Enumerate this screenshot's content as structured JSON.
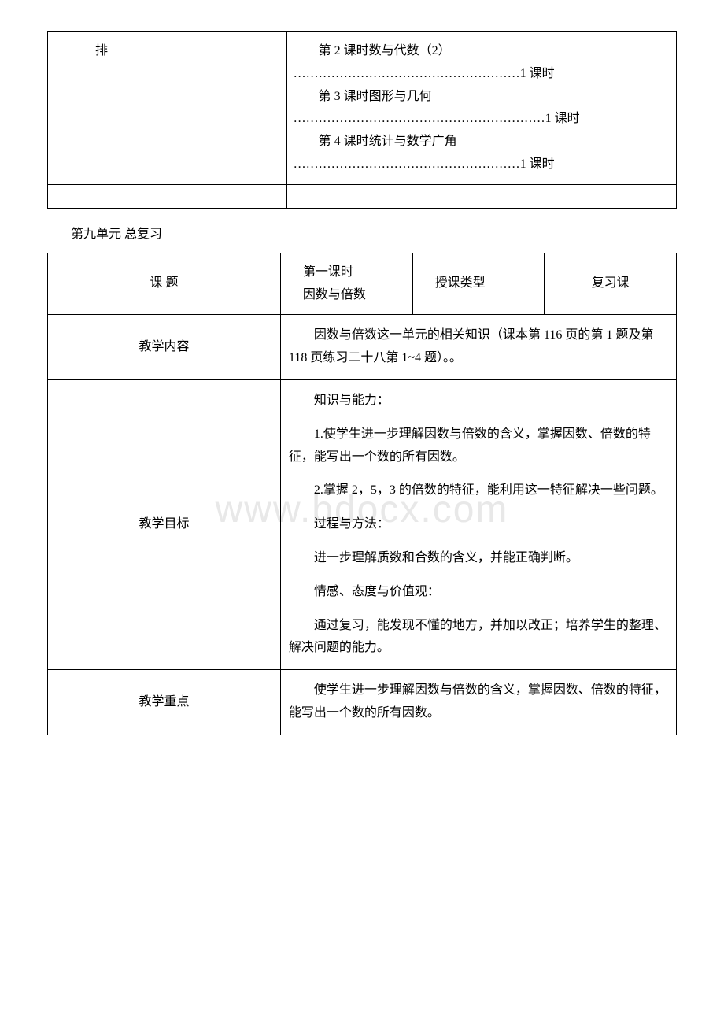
{
  "watermark": "www.bdocx.com",
  "table1": {
    "left_label": "排",
    "lines": [
      "第 2 课时数与代数（2）",
      "………………………………………………1 课时",
      "第 3 课时图形与几何",
      "……………………………………………………1 课时",
      "第 4 课时统计与数学广角",
      "………………………………………………1 课时"
    ]
  },
  "section_heading": "第九单元 总复习",
  "table2": {
    "row1": {
      "label": "课 题",
      "col2_line1": "第一课时",
      "col2_line2": "因数与倍数",
      "col3": "授课类型",
      "col4": "复习课"
    },
    "row2": {
      "label": "教学内容",
      "content": "因数与倍数这一单元的相关知识（课本第 116 页的第 1 题及第 118 页练习二十八第 1~4 题）。。"
    },
    "row3": {
      "label": "教学目标",
      "p1": "知识与能力：",
      "p2": "1.使学生进一步理解因数与倍数的含义，掌握因数、倍数的特征，能写出一个数的所有因数。",
      "p3": "2.掌握 2，5，3 的倍数的特征，能利用这一特征解决一些问题。",
      "p4": "过程与方法：",
      "p5": "进一步理解质数和合数的含义，并能正确判断。",
      "p6": "情感、态度与价值观：",
      "p7": "通过复习，能发现不懂的地方，并加以改正；培养学生的整理、解决问题的能力。"
    },
    "row4": {
      "label": "教学重点",
      "content": "使学生进一步理解因数与倍数的含义，掌握因数、倍数的特征，能写出一个数的所有因数。"
    }
  }
}
